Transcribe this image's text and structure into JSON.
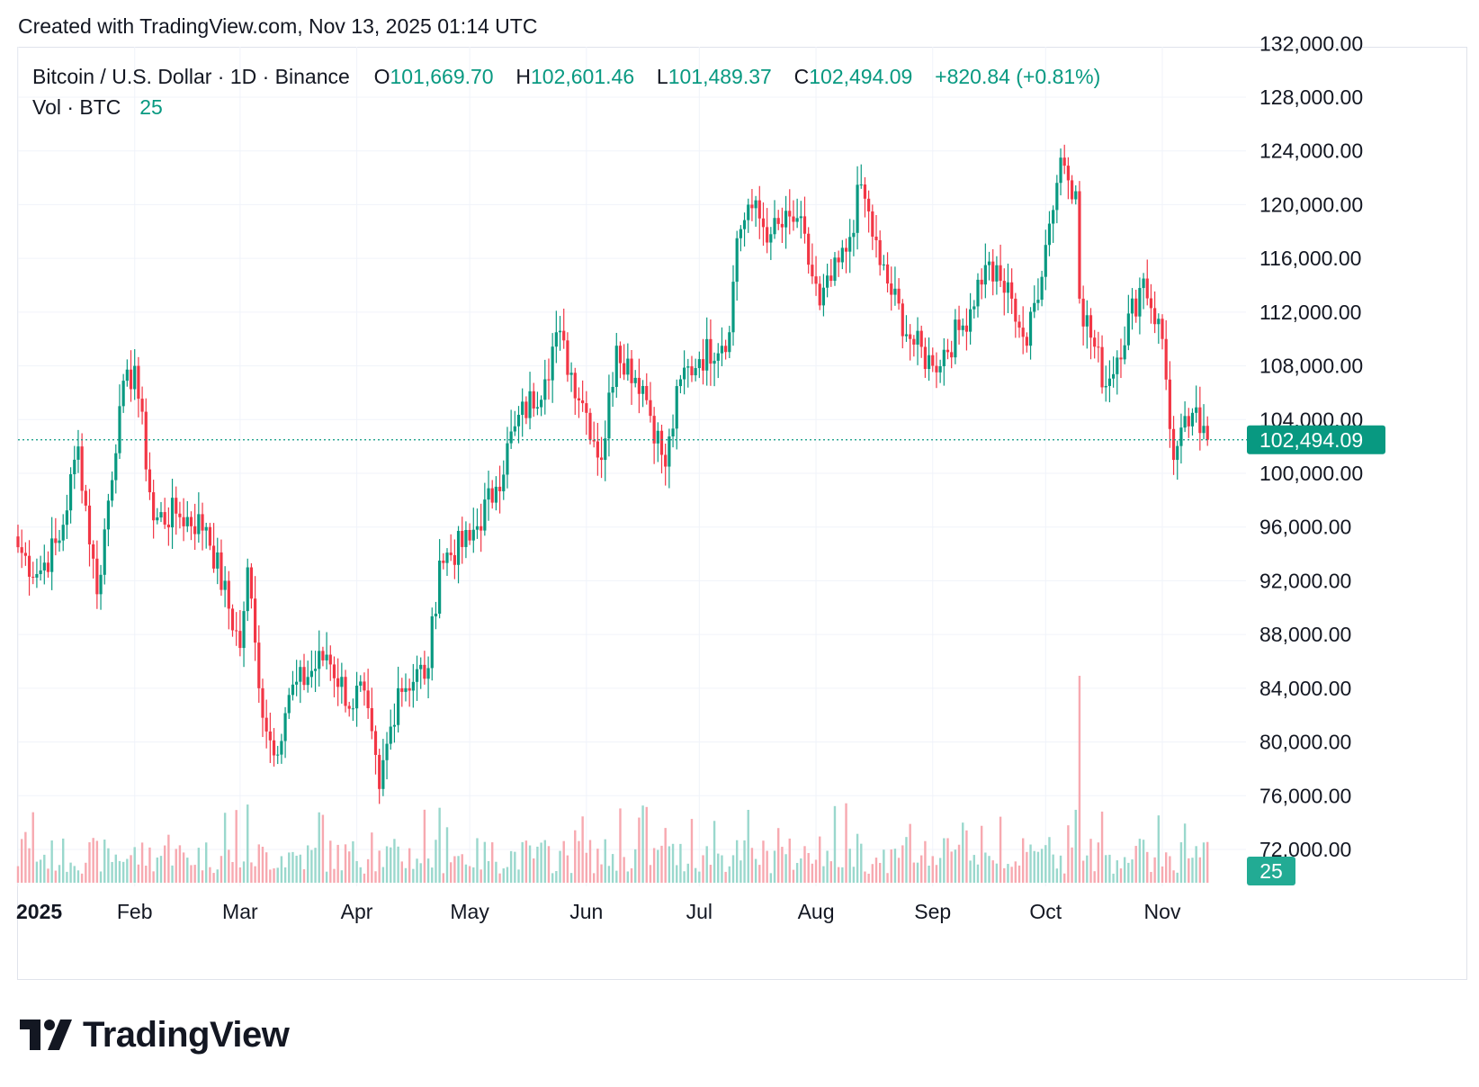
{
  "header": {
    "created_text": "Created with TradingView.com, Nov 13, 2025 01:14 UTC"
  },
  "legend": {
    "symbol": "Bitcoin / U.S. Dollar · 1D · Binance",
    "open_label": "O",
    "open_value": "101,669.70",
    "high_label": "H",
    "high_value": "102,601.46",
    "low_label": "L",
    "low_value": "101,489.37",
    "close_label": "C",
    "close_value": "102,494.09",
    "change": "+820.84 (+0.81%)",
    "vol_label": "Vol · BTC",
    "vol_value": "25"
  },
  "branding": {
    "logo_text": "TradingView"
  },
  "colors": {
    "up": "#089981",
    "down": "#f23645",
    "up_vol": "#9ad8cd",
    "down_vol": "#f7a9b0",
    "grid": "#f0f3fa",
    "axis_text": "#131722"
  },
  "chart_data": {
    "type": "candlestick",
    "price_axis": {
      "ticks": [
        72000,
        76000,
        80000,
        84000,
        88000,
        92000,
        96000,
        100000,
        104000,
        108000,
        112000,
        116000,
        120000,
        124000,
        128000,
        132000
      ],
      "tick_labels": [
        "72,000.00",
        "76,000.00",
        "80,000.00",
        "84,000.00",
        "88,000.00",
        "92,000.00",
        "96,000.00",
        "100,000.00",
        "104,000.00",
        "108,000.00",
        "112,000.00",
        "116,000.00",
        "120,000.00",
        "124,000.00",
        "128,000.00",
        "132,000.00"
      ],
      "range": [
        70000,
        132000
      ]
    },
    "time_axis": {
      "labels": [
        "2025",
        "Feb",
        "Mar",
        "Apr",
        "May",
        "Jun",
        "Jul",
        "Aug",
        "Sep",
        "Oct",
        "Nov"
      ],
      "label_dates": [
        "2025-01-01",
        "2025-02-01",
        "2025-03-01",
        "2025-04-01",
        "2025-05-01",
        "2025-06-01",
        "2025-07-01",
        "2025-08-01",
        "2025-09-01",
        "2025-10-01",
        "2025-11-01"
      ],
      "range": [
        "2025-01-01",
        "2025-11-13"
      ]
    },
    "last_price": 102494.09,
    "last_price_label": "102,494.09",
    "volume_label": "25",
    "key_closes": [
      {
        "date": "2025-01-01",
        "close": 94500
      },
      {
        "date": "2025-01-06",
        "close": 92500
      },
      {
        "date": "2025-01-12",
        "close": 95000
      },
      {
        "date": "2025-01-17",
        "close": 102000
      },
      {
        "date": "2025-01-22",
        "close": 91000
      },
      {
        "date": "2025-01-28",
        "close": 105000
      },
      {
        "date": "2025-02-01",
        "close": 108000
      },
      {
        "date": "2025-02-06",
        "close": 96500
      },
      {
        "date": "2025-02-12",
        "close": 97000
      },
      {
        "date": "2025-02-20",
        "close": 96000
      },
      {
        "date": "2025-03-01",
        "close": 87000
      },
      {
        "date": "2025-03-03",
        "close": 93000
      },
      {
        "date": "2025-03-06",
        "close": 84000
      },
      {
        "date": "2025-03-10",
        "close": 79000
      },
      {
        "date": "2025-03-14",
        "close": 83500
      },
      {
        "date": "2025-03-24",
        "close": 86500
      },
      {
        "date": "2025-03-31",
        "close": 82500
      },
      {
        "date": "2025-04-02",
        "close": 84500
      },
      {
        "date": "2025-04-07",
        "close": 76500
      },
      {
        "date": "2025-04-12",
        "close": 84000
      },
      {
        "date": "2025-04-20",
        "close": 85500
      },
      {
        "date": "2025-04-23",
        "close": 93500
      },
      {
        "date": "2025-05-01",
        "close": 95000
      },
      {
        "date": "2025-05-08",
        "close": 99000
      },
      {
        "date": "2025-05-13",
        "close": 103500
      },
      {
        "date": "2025-05-21",
        "close": 107000
      },
      {
        "date": "2025-05-24",
        "close": 110500
      },
      {
        "date": "2025-06-01",
        "close": 104500
      },
      {
        "date": "2025-06-05",
        "close": 101000
      },
      {
        "date": "2025-06-09",
        "close": 109500
      },
      {
        "date": "2025-06-16",
        "close": 106500
      },
      {
        "date": "2025-06-22",
        "close": 100500
      },
      {
        "date": "2025-06-26",
        "close": 107000
      },
      {
        "date": "2025-07-01",
        "close": 108500
      },
      {
        "date": "2025-07-09",
        "close": 110500
      },
      {
        "date": "2025-07-11",
        "close": 117500
      },
      {
        "date": "2025-07-14",
        "close": 120000
      },
      {
        "date": "2025-07-20",
        "close": 117800
      },
      {
        "date": "2025-07-27",
        "close": 119000
      },
      {
        "date": "2025-08-02",
        "close": 112500
      },
      {
        "date": "2025-08-09",
        "close": 116500
      },
      {
        "date": "2025-08-13",
        "close": 121500
      },
      {
        "date": "2025-08-18",
        "close": 115500
      },
      {
        "date": "2025-08-26",
        "close": 110000
      },
      {
        "date": "2025-09-01",
        "close": 108000
      },
      {
        "date": "2025-09-09",
        "close": 111000
      },
      {
        "date": "2025-09-15",
        "close": 115500
      },
      {
        "date": "2025-09-22",
        "close": 113000
      },
      {
        "date": "2025-09-26",
        "close": 109500
      },
      {
        "date": "2025-10-01",
        "close": 117000
      },
      {
        "date": "2025-10-05",
        "close": 123500
      },
      {
        "date": "2025-10-09",
        "close": 121000
      },
      {
        "date": "2025-10-10",
        "close": 113000
      },
      {
        "date": "2025-10-17",
        "close": 106500
      },
      {
        "date": "2025-10-27",
        "close": 114500
      },
      {
        "date": "2025-11-01",
        "close": 110000
      },
      {
        "date": "2025-11-04",
        "close": 101000
      },
      {
        "date": "2025-11-09",
        "close": 104500
      },
      {
        "date": "2025-11-11",
        "close": 103000
      },
      {
        "date": "2025-11-13",
        "close": 102494
      }
    ],
    "volume_spike": {
      "date": "2025-10-10",
      "note": "largest volume bar"
    }
  }
}
